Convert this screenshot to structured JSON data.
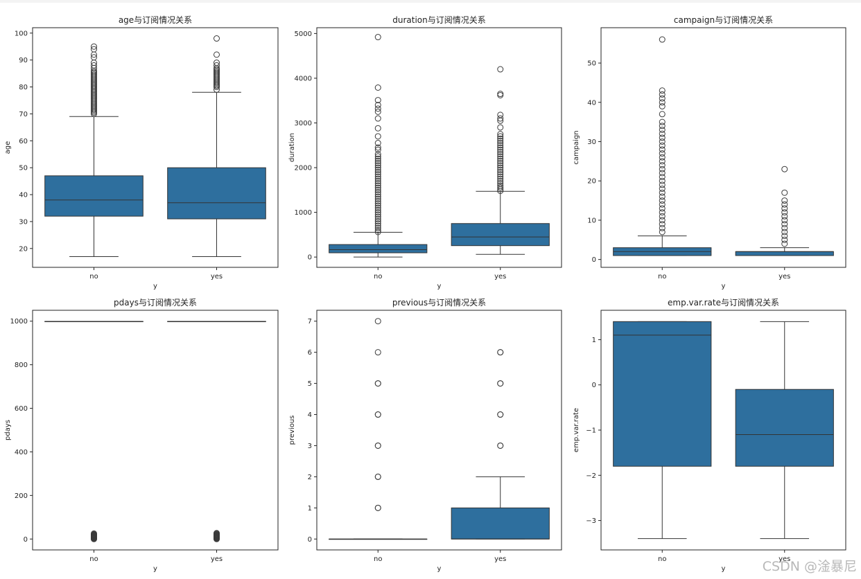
{
  "watermark": "CSDN @淦暴尼",
  "style": {
    "box_fill": "#2e6f9e",
    "line_color": "#333333",
    "frame_color": "#222222"
  },
  "chart_data": [
    {
      "type": "box",
      "title": "age与订阅情况关系",
      "xlabel": "y",
      "ylabel": "age",
      "categories": [
        "no",
        "yes"
      ],
      "ylim": [
        13,
        102
      ],
      "yticks": [
        20,
        30,
        40,
        50,
        60,
        70,
        80,
        90,
        100
      ],
      "boxes": [
        {
          "whislo": 17,
          "q1": 32,
          "med": 38,
          "q3": 47,
          "whishi": 69,
          "fliers": [
            70,
            70.5,
            71,
            71.5,
            72,
            72.5,
            73,
            73.5,
            74,
            74.5,
            75,
            75.5,
            76,
            76.5,
            77,
            77.5,
            78,
            78.5,
            79,
            79.5,
            80,
            80.5,
            81,
            81.5,
            82,
            82.5,
            83,
            83.5,
            84,
            84.5,
            85,
            85.5,
            86,
            87,
            88,
            89,
            91,
            92,
            94,
            95
          ]
        },
        {
          "whislo": 17,
          "q1": 31,
          "med": 37,
          "q3": 50,
          "whishi": 78,
          "fliers": [
            79,
            80,
            80.5,
            81,
            81.5,
            82,
            82.5,
            83,
            83.5,
            84,
            84.5,
            85,
            85.5,
            86,
            86.5,
            87,
            88,
            89,
            92,
            98
          ]
        }
      ]
    },
    {
      "type": "box",
      "title": "duration与订阅情况关系",
      "xlabel": "y",
      "ylabel": "duration",
      "categories": [
        "no",
        "yes"
      ],
      "ylim": [
        -230,
        5130
      ],
      "yticks": [
        0,
        1000,
        2000,
        3000,
        4000,
        5000
      ],
      "boxes": [
        {
          "whislo": 0,
          "q1": 95,
          "med": 165,
          "q3": 280,
          "whishi": 555,
          "fliers": [
            560,
            600,
            650,
            700,
            750,
            800,
            850,
            900,
            950,
            1000,
            1050,
            1100,
            1150,
            1200,
            1250,
            1300,
            1350,
            1400,
            1450,
            1500,
            1550,
            1600,
            1650,
            1700,
            1750,
            1800,
            1850,
            1900,
            1950,
            2000,
            2050,
            2100,
            2150,
            2200,
            2250,
            2300,
            2400,
            2450,
            2550,
            2700,
            2880,
            3100,
            3250,
            3320,
            3400,
            3510,
            3790,
            4920
          ]
        },
        {
          "whislo": 60,
          "q1": 255,
          "med": 450,
          "q3": 750,
          "whishi": 1470,
          "fliers": [
            1480,
            1520,
            1560,
            1600,
            1650,
            1700,
            1750,
            1800,
            1850,
            1900,
            1950,
            2000,
            2050,
            2100,
            2150,
            2200,
            2250,
            2300,
            2350,
            2400,
            2450,
            2500,
            2550,
            2600,
            2650,
            2700,
            2750,
            2900,
            3050,
            3100,
            3180,
            3620,
            3650,
            4200
          ]
        }
      ]
    },
    {
      "type": "box",
      "title": "campaign与订阅情况关系",
      "xlabel": "y",
      "ylabel": "campaign",
      "categories": [
        "no",
        "yes"
      ],
      "ylim": [
        -2,
        59
      ],
      "yticks": [
        0,
        10,
        20,
        30,
        40,
        50
      ],
      "boxes": [
        {
          "whislo": 1,
          "q1": 1,
          "med": 2,
          "q3": 3,
          "whishi": 6,
          "fliers": [
            7,
            8,
            9,
            10,
            11,
            12,
            13,
            14,
            15,
            16,
            17,
            18,
            19,
            20,
            21,
            22,
            23,
            24,
            25,
            26,
            27,
            28,
            29,
            30,
            31,
            32,
            33,
            34,
            35,
            37,
            39,
            40,
            41,
            42,
            43,
            56
          ]
        },
        {
          "whislo": 1,
          "q1": 1,
          "med": 2,
          "q3": 2,
          "whishi": 3,
          "fliers": [
            4,
            5,
            6,
            7,
            8,
            9,
            10,
            11,
            12,
            13,
            14,
            15,
            17,
            23
          ]
        }
      ]
    },
    {
      "type": "box",
      "title": "pdays与订阅情况关系",
      "xlabel": "y",
      "ylabel": "pdays",
      "categories": [
        "no",
        "yes"
      ],
      "ylim": [
        -50,
        1050
      ],
      "yticks": [
        0,
        200,
        400,
        600,
        800,
        1000
      ],
      "boxes": [
        {
          "whislo": 999,
          "q1": 999,
          "med": 999,
          "q3": 999,
          "whishi": 999,
          "fliers": [
            0,
            2,
            4,
            6,
            8,
            10,
            12,
            14,
            16,
            18,
            20,
            22,
            25
          ]
        },
        {
          "whislo": 999,
          "q1": 999,
          "med": 999,
          "q3": 999,
          "whishi": 999,
          "fliers": [
            0,
            2,
            4,
            6,
            8,
            10,
            12,
            14,
            16,
            18,
            20,
            22,
            25,
            27
          ]
        }
      ]
    },
    {
      "type": "box",
      "title": "previous与订阅情况关系",
      "xlabel": "y",
      "ylabel": "previous",
      "categories": [
        "no",
        "yes"
      ],
      "ylim": [
        -0.35,
        7.35
      ],
      "yticks": [
        0,
        1,
        2,
        3,
        4,
        5,
        6,
        7
      ],
      "boxes": [
        {
          "whislo": 0,
          "q1": 0,
          "med": 0,
          "q3": 0,
          "whishi": 0,
          "fliers": [
            1,
            1,
            2,
            2,
            3,
            3,
            4,
            4,
            5,
            5,
            6,
            7
          ]
        },
        {
          "whislo": 0,
          "q1": 0,
          "med": 0,
          "q3": 1,
          "whishi": 2,
          "fliers": [
            3,
            3,
            4,
            4,
            5,
            5,
            6,
            6
          ]
        }
      ]
    },
    {
      "type": "box",
      "title": "emp.var.rate与订阅情况关系",
      "xlabel": "y",
      "ylabel": "emp.var.rate",
      "categories": [
        "no",
        "yes"
      ],
      "ylim": [
        -3.65,
        1.65
      ],
      "yticks": [
        -3,
        -2,
        -1,
        0,
        1
      ],
      "boxes": [
        {
          "whislo": -3.4,
          "q1": -1.8,
          "med": 1.1,
          "q3": 1.4,
          "whishi": 1.4,
          "fliers": []
        },
        {
          "whislo": -3.4,
          "q1": -1.8,
          "med": -1.1,
          "q3": -0.1,
          "whishi": 1.4,
          "fliers": []
        }
      ]
    }
  ]
}
